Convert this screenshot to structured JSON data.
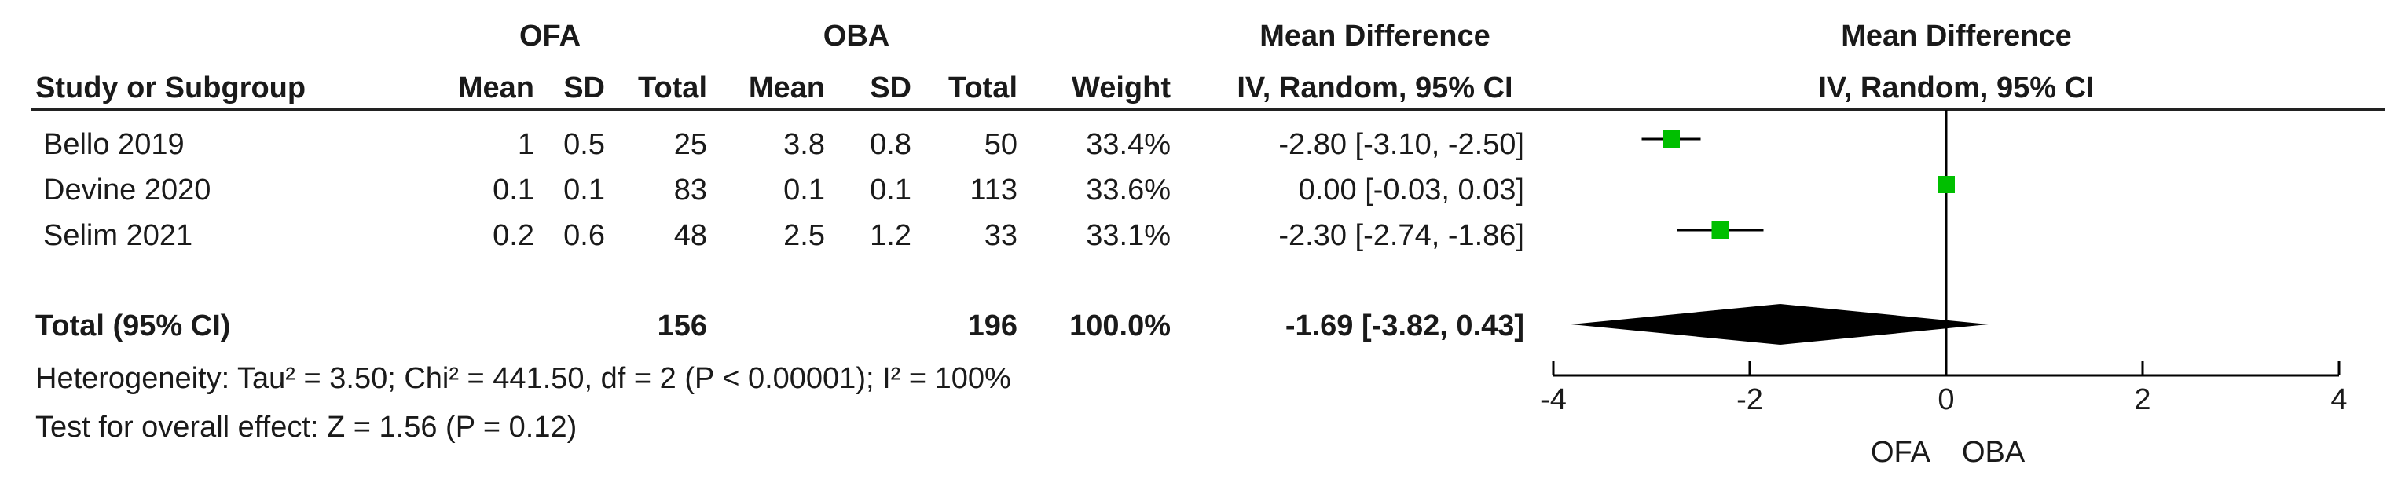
{
  "headers": {
    "group1": "OFA",
    "group2": "OBA",
    "md_top": "Mean Difference",
    "md_sub": "IV, Random, 95% CI",
    "plot_top": "Mean Difference",
    "plot_sub": "IV, Random, 95% CI",
    "study": "Study or Subgroup",
    "mean1": "Mean",
    "sd1": "SD",
    "total1": "Total",
    "mean2": "Mean",
    "sd2": "SD",
    "total2": "Total",
    "weight": "Weight"
  },
  "studies": [
    {
      "name": "Bello 2019",
      "mean1": "1",
      "sd1": "0.5",
      "total1": "25",
      "mean2": "3.8",
      "sd2": "0.8",
      "total2": "50",
      "weight": "33.4%",
      "ci": "-2.80 [-3.10, -2.50]"
    },
    {
      "name": "Devine 2020",
      "mean1": "0.1",
      "sd1": "0.1",
      "total1": "83",
      "mean2": "0.1",
      "sd2": "0.1",
      "total2": "113",
      "weight": "33.6%",
      "ci": "0.00 [-0.03, 0.03]"
    },
    {
      "name": "Selim 2021",
      "mean1": "0.2",
      "sd1": "0.6",
      "total1": "48",
      "mean2": "2.5",
      "sd2": "1.2",
      "total2": "33",
      "weight": "33.1%",
      "ci": "-2.30 [-2.74, -1.86]"
    }
  ],
  "total": {
    "name": "Total (95% CI)",
    "total1": "156",
    "total2": "196",
    "weight": "100.0%",
    "ci": "-1.69 [-3.82, 0.43]"
  },
  "footer": {
    "heterogeneity": "Heterogeneity: Tau² = 3.50; Chi² = 441.50, df = 2 (P < 0.00001); I² = 100%",
    "overall": "Test for overall effect: Z = 1.56 (P = 0.12)"
  },
  "colors": {
    "marker": "#00bf00",
    "diamond": "#000000",
    "line": "#000000"
  },
  "chart_data": {
    "type": "forest",
    "xlim": [
      -4,
      4
    ],
    "xticks": [
      "-4",
      "-2",
      "0",
      "2",
      "4"
    ],
    "xticks_values": [
      -4,
      -2,
      0,
      2,
      4
    ],
    "favours_left": "OFA",
    "favours_right": "OBA",
    "points": [
      {
        "name": "Bello 2019",
        "md": -2.8,
        "lower": -3.1,
        "upper": -2.5,
        "weight": 33.4
      },
      {
        "name": "Devine 2020",
        "md": 0.0,
        "lower": -0.03,
        "upper": 0.03,
        "weight": 33.6
      },
      {
        "name": "Selim 2021",
        "md": -2.3,
        "lower": -2.74,
        "upper": -1.86,
        "weight": 33.1
      }
    ],
    "pooled": {
      "md": -1.69,
      "lower": -3.82,
      "upper": 0.43
    }
  }
}
